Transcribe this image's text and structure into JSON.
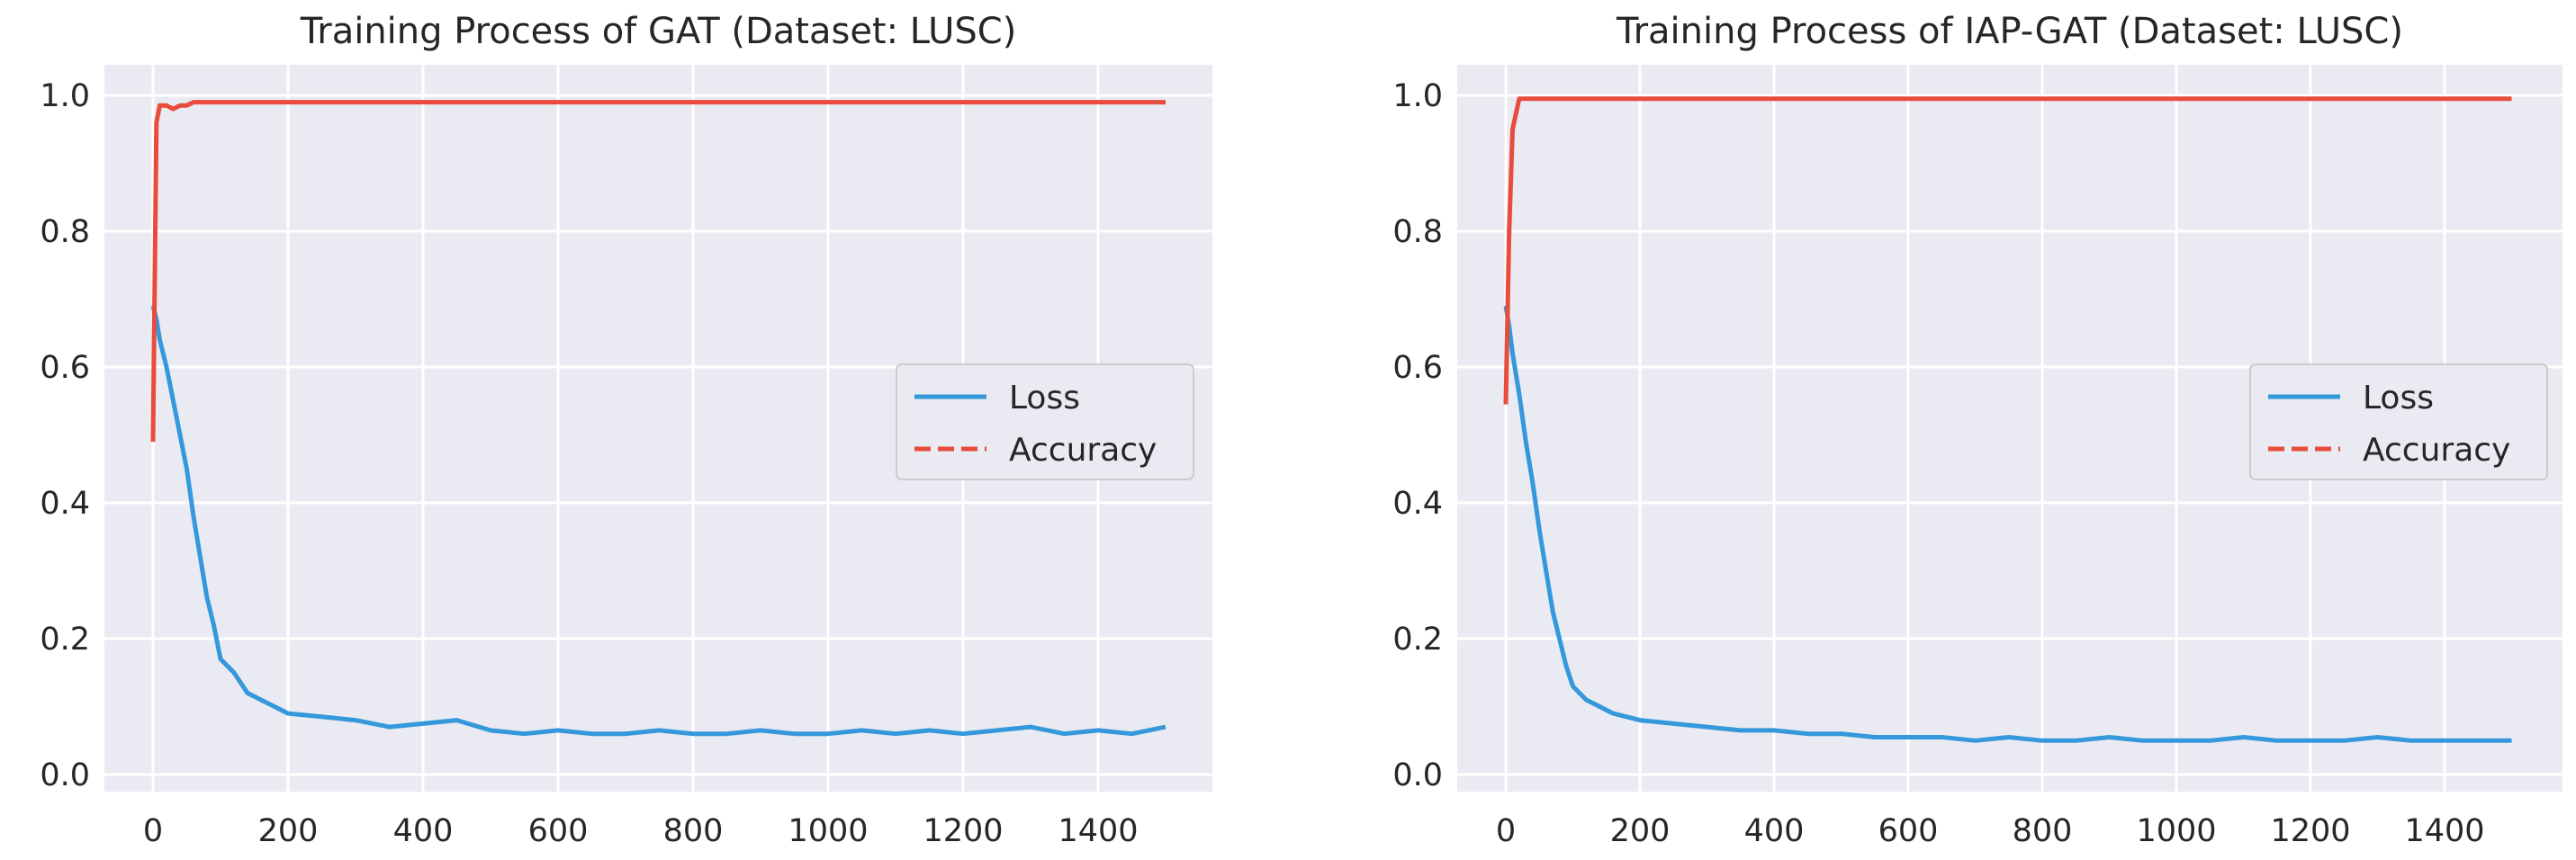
{
  "chart_data": [
    {
      "type": "line",
      "title": "Training Process of GAT (Dataset: LUSC)",
      "xlabel": "",
      "ylabel": "",
      "xlim": [
        -50,
        1550
      ],
      "ylim": [
        -0.02,
        1.04
      ],
      "xticks": [
        "0",
        "200",
        "400",
        "600",
        "800",
        "1000",
        "1200",
        "1400"
      ],
      "yticks": [
        "0.0",
        "0.2",
        "0.4",
        "0.6",
        "0.8",
        "1.0"
      ],
      "grid": true,
      "legend_position": "center-right",
      "x": [
        0,
        5,
        10,
        20,
        30,
        40,
        50,
        60,
        70,
        80,
        90,
        100,
        120,
        140,
        160,
        180,
        200,
        250,
        300,
        350,
        400,
        450,
        500,
        550,
        600,
        650,
        700,
        750,
        800,
        850,
        900,
        950,
        1000,
        1050,
        1100,
        1150,
        1200,
        1250,
        1300,
        1350,
        1400,
        1450,
        1500
      ],
      "series": [
        {
          "name": "Loss",
          "style": "solid",
          "color": "#3498db",
          "values": [
            0.69,
            0.67,
            0.64,
            0.6,
            0.55,
            0.5,
            0.45,
            0.38,
            0.32,
            0.26,
            0.22,
            0.17,
            0.15,
            0.12,
            0.11,
            0.1,
            0.09,
            0.085,
            0.08,
            0.07,
            0.075,
            0.08,
            0.065,
            0.06,
            0.065,
            0.06,
            0.06,
            0.065,
            0.06,
            0.06,
            0.065,
            0.06,
            0.06,
            0.065,
            0.06,
            0.065,
            0.06,
            0.065,
            0.07,
            0.06,
            0.065,
            0.06,
            0.07
          ]
        },
        {
          "name": "Accuracy",
          "style": "dashed",
          "color": "#e74c3c",
          "values": [
            0.49,
            0.96,
            0.985,
            0.985,
            0.98,
            0.985,
            0.985,
            0.99,
            0.99,
            0.99,
            0.99,
            0.99,
            0.99,
            0.99,
            0.99,
            0.99,
            0.99,
            0.99,
            0.99,
            0.99,
            0.99,
            0.99,
            0.99,
            0.99,
            0.99,
            0.99,
            0.99,
            0.99,
            0.99,
            0.99,
            0.99,
            0.99,
            0.99,
            0.99,
            0.99,
            0.99,
            0.99,
            0.99,
            0.99,
            0.99,
            0.99,
            0.99,
            0.99
          ]
        }
      ]
    },
    {
      "type": "line",
      "title": "Training Process of IAP-GAT (Dataset: LUSC)",
      "xlabel": "",
      "ylabel": "",
      "xlim": [
        -50,
        1550
      ],
      "ylim": [
        -0.02,
        1.04
      ],
      "xticks": [
        "0",
        "200",
        "400",
        "600",
        "800",
        "1000",
        "1200",
        "1400"
      ],
      "yticks": [
        "0.0",
        "0.2",
        "0.4",
        "0.6",
        "0.8",
        "1.0"
      ],
      "grid": true,
      "legend_position": "center-right",
      "x": [
        0,
        5,
        10,
        20,
        30,
        40,
        50,
        60,
        70,
        80,
        90,
        100,
        120,
        140,
        160,
        180,
        200,
        250,
        300,
        350,
        400,
        450,
        500,
        550,
        600,
        650,
        700,
        750,
        800,
        850,
        900,
        950,
        1000,
        1050,
        1100,
        1150,
        1200,
        1250,
        1300,
        1350,
        1400,
        1450,
        1500
      ],
      "series": [
        {
          "name": "Loss",
          "style": "solid",
          "color": "#3498db",
          "values": [
            0.69,
            0.66,
            0.62,
            0.56,
            0.49,
            0.43,
            0.36,
            0.3,
            0.24,
            0.2,
            0.16,
            0.13,
            0.11,
            0.1,
            0.09,
            0.085,
            0.08,
            0.075,
            0.07,
            0.065,
            0.065,
            0.06,
            0.06,
            0.055,
            0.055,
            0.055,
            0.05,
            0.055,
            0.05,
            0.05,
            0.055,
            0.05,
            0.05,
            0.05,
            0.055,
            0.05,
            0.05,
            0.05,
            0.055,
            0.05,
            0.05,
            0.05,
            0.05
          ]
        },
        {
          "name": "Accuracy",
          "style": "dashed",
          "color": "#e74c3c",
          "values": [
            0.545,
            0.8,
            0.95,
            0.995,
            0.995,
            0.995,
            0.995,
            0.995,
            0.995,
            0.995,
            0.995,
            0.995,
            0.995,
            0.995,
            0.995,
            0.995,
            0.995,
            0.995,
            0.995,
            0.995,
            0.995,
            0.995,
            0.995,
            0.995,
            0.995,
            0.995,
            0.995,
            0.995,
            0.995,
            0.995,
            0.995,
            0.995,
            0.995,
            0.995,
            0.995,
            0.995,
            0.995,
            0.995,
            0.995,
            0.995,
            0.995,
            0.995,
            0.995
          ]
        }
      ]
    }
  ]
}
